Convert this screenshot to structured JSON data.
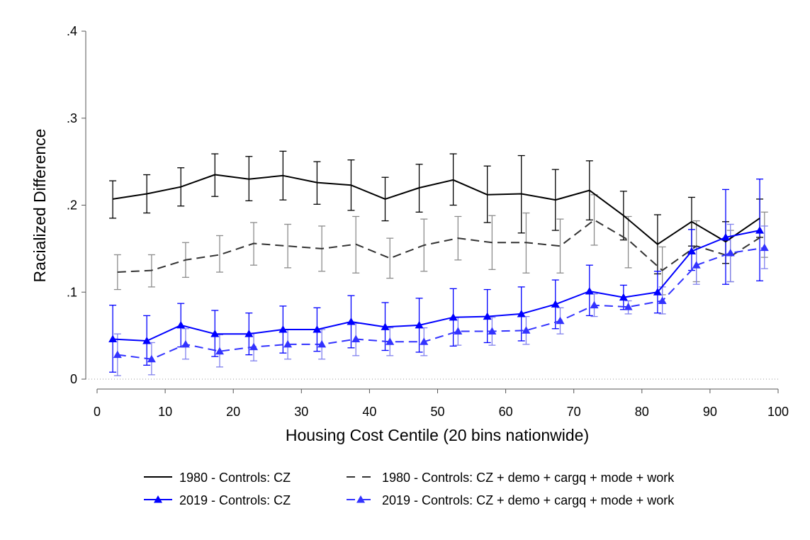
{
  "chart_data": {
    "type": "line",
    "xlabel": "Housing Cost Centile (20 bins nationwide)",
    "ylabel": "Racialized Difference",
    "xlim": [
      0,
      100
    ],
    "ylim": [
      0,
      0.4
    ],
    "xticks": [
      0,
      10,
      20,
      30,
      40,
      50,
      60,
      70,
      80,
      90,
      100
    ],
    "yticks": [
      0,
      0.1,
      0.2,
      0.3,
      0.4
    ],
    "yticklabels": [
      "0",
      ".1",
      ".2",
      ".3",
      ".4"
    ],
    "grid": false,
    "zero_line": "dotted",
    "legend_position": "bottom",
    "series": [
      {
        "name": "1980 - Controls: CZ",
        "color": "#000000",
        "dash": "solid",
        "marker": "none",
        "errorbar_color": "#000000",
        "x": [
          2.3,
          7.3,
          12.3,
          17.3,
          22.3,
          27.3,
          32.3,
          37.3,
          42.3,
          47.3,
          52.3,
          57.3,
          62.3,
          67.3,
          72.3,
          77.3,
          82.3,
          87.3,
          92.3,
          97.3
        ],
        "y": [
          0.207,
          0.213,
          0.221,
          0.235,
          0.23,
          0.234,
          0.226,
          0.223,
          0.207,
          0.22,
          0.229,
          0.212,
          0.213,
          0.206,
          0.217,
          0.188,
          0.155,
          0.181,
          0.158,
          0.185
        ],
        "lo": [
          0.185,
          0.191,
          0.199,
          0.21,
          0.205,
          0.206,
          0.201,
          0.194,
          0.182,
          0.192,
          0.2,
          0.18,
          0.168,
          0.171,
          0.183,
          0.16,
          0.121,
          0.153,
          0.133,
          0.163
        ],
        "hi": [
          0.228,
          0.235,
          0.243,
          0.259,
          0.256,
          0.262,
          0.25,
          0.252,
          0.232,
          0.247,
          0.259,
          0.245,
          0.257,
          0.241,
          0.251,
          0.216,
          0.189,
          0.209,
          0.181,
          0.207
        ]
      },
      {
        "name": "1980 - Controls: CZ + demo + cargq + mode + work",
        "color": "#333333",
        "dash": "dashed",
        "marker": "none",
        "errorbar_color": "#8c8c8c",
        "x": [
          3.0,
          8.0,
          13.0,
          18.0,
          23.0,
          28.0,
          33.0,
          38.0,
          43.0,
          48.0,
          53.0,
          58.0,
          63.0,
          68.0,
          73.0,
          78.0,
          83.0,
          88.0,
          93.0,
          98.0
        ],
        "y": [
          0.123,
          0.125,
          0.137,
          0.143,
          0.156,
          0.153,
          0.15,
          0.155,
          0.139,
          0.154,
          0.162,
          0.157,
          0.157,
          0.153,
          0.183,
          0.16,
          0.125,
          0.153,
          0.141,
          0.166
        ],
        "lo": [
          0.103,
          0.106,
          0.117,
          0.123,
          0.131,
          0.128,
          0.124,
          0.122,
          0.116,
          0.124,
          0.137,
          0.126,
          0.122,
          0.122,
          0.154,
          0.128,
          0.097,
          0.112,
          0.112,
          0.14
        ],
        "hi": [
          0.143,
          0.143,
          0.157,
          0.165,
          0.18,
          0.178,
          0.176,
          0.187,
          0.162,
          0.184,
          0.187,
          0.188,
          0.191,
          0.184,
          0.212,
          0.187,
          0.152,
          0.182,
          0.171,
          0.192
        ]
      },
      {
        "name": "2019 - Controls: CZ",
        "color": "#0000ff",
        "dash": "solid",
        "marker": "triangle",
        "errorbar_color": "#0000ff",
        "x": [
          2.3,
          7.3,
          12.3,
          17.3,
          22.3,
          27.3,
          32.3,
          37.3,
          42.3,
          47.3,
          52.3,
          57.3,
          62.3,
          67.3,
          72.3,
          77.3,
          82.3,
          87.3,
          92.3,
          97.3
        ],
        "y": [
          0.046,
          0.044,
          0.062,
          0.052,
          0.052,
          0.057,
          0.057,
          0.066,
          0.06,
          0.062,
          0.071,
          0.072,
          0.075,
          0.086,
          0.101,
          0.094,
          0.1,
          0.147,
          0.163,
          0.171
        ],
        "lo": [
          0.008,
          0.016,
          0.037,
          0.026,
          0.028,
          0.03,
          0.032,
          0.036,
          0.033,
          0.031,
          0.038,
          0.042,
          0.044,
          0.058,
          0.073,
          0.08,
          0.076,
          0.125,
          0.109,
          0.113
        ],
        "hi": [
          0.085,
          0.073,
          0.087,
          0.079,
          0.076,
          0.084,
          0.082,
          0.096,
          0.088,
          0.093,
          0.104,
          0.103,
          0.106,
          0.114,
          0.131,
          0.108,
          0.124,
          0.172,
          0.218,
          0.23
        ]
      },
      {
        "name": "2019 - Controls: CZ + demo + cargq + mode + work",
        "color": "#3333ff",
        "dash": "dashed",
        "marker": "triangle",
        "errorbar_color": "#8080ee",
        "x": [
          3.0,
          8.0,
          13.0,
          18.0,
          23.0,
          28.0,
          33.0,
          38.0,
          43.0,
          48.0,
          53.0,
          58.0,
          63.0,
          68.0,
          73.0,
          78.0,
          83.0,
          88.0,
          93.0,
          98.0
        ],
        "y": [
          0.028,
          0.023,
          0.04,
          0.032,
          0.037,
          0.04,
          0.04,
          0.046,
          0.043,
          0.043,
          0.055,
          0.055,
          0.056,
          0.067,
          0.085,
          0.083,
          0.09,
          0.131,
          0.145,
          0.151
        ],
        "lo": [
          0.004,
          0.005,
          0.023,
          0.014,
          0.021,
          0.023,
          0.023,
          0.027,
          0.027,
          0.027,
          0.039,
          0.039,
          0.04,
          0.052,
          0.072,
          0.075,
          0.075,
          0.109,
          0.112,
          0.127
        ],
        "hi": [
          0.052,
          0.042,
          0.058,
          0.051,
          0.053,
          0.057,
          0.057,
          0.064,
          0.059,
          0.059,
          0.071,
          0.071,
          0.072,
          0.082,
          0.098,
          0.09,
          0.106,
          0.152,
          0.178,
          0.176
        ]
      }
    ]
  }
}
